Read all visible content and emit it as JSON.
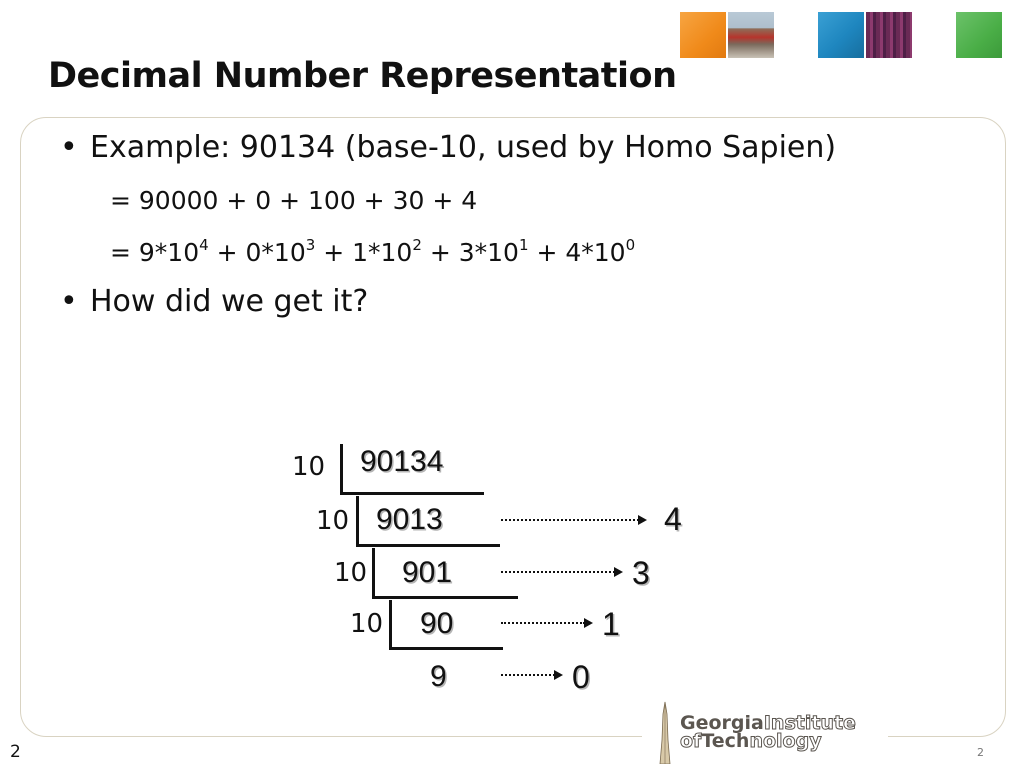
{
  "slide": {
    "title": "Decimal Number Representation",
    "bullets": [
      {
        "text": "Example: 90134 (base-10, used by Homo Sapien)"
      },
      {
        "text": "How did we get it?"
      }
    ],
    "subs": {
      "line1": "= 90000 + 0 + 100 + 30 + 4",
      "line2": {
        "prefix": "= ",
        "terms": [
          {
            "coef": "9*10",
            "exp": "4",
            "sep": " + "
          },
          {
            "coef": "0*10",
            "exp": "3",
            "sep": " + "
          },
          {
            "coef": "1*10",
            "exp": "2",
            "sep": " + "
          },
          {
            "coef": "3*10",
            "exp": "1",
            "sep": " + "
          },
          {
            "coef": "4*10",
            "exp": "0",
            "sep": ""
          }
        ]
      }
    }
  },
  "division": {
    "divisor": "10",
    "dividends": [
      "90134",
      "9013",
      "901",
      "90",
      "9"
    ],
    "remainders": [
      "4",
      "3",
      "1",
      "0"
    ]
  },
  "footer": {
    "page_number_left": "2",
    "page_number_right": "2",
    "logo": {
      "line1_bold": "Georgia",
      "line1_outline": "Institute",
      "line2_outline_a": "of",
      "line2_bold": "Tech",
      "line2_outline_b": "nology"
    }
  },
  "colors": {
    "orange": "#f08a1a",
    "blue": "#1e86bf",
    "green": "#4aae47",
    "box_border": "#d9d3c2"
  }
}
